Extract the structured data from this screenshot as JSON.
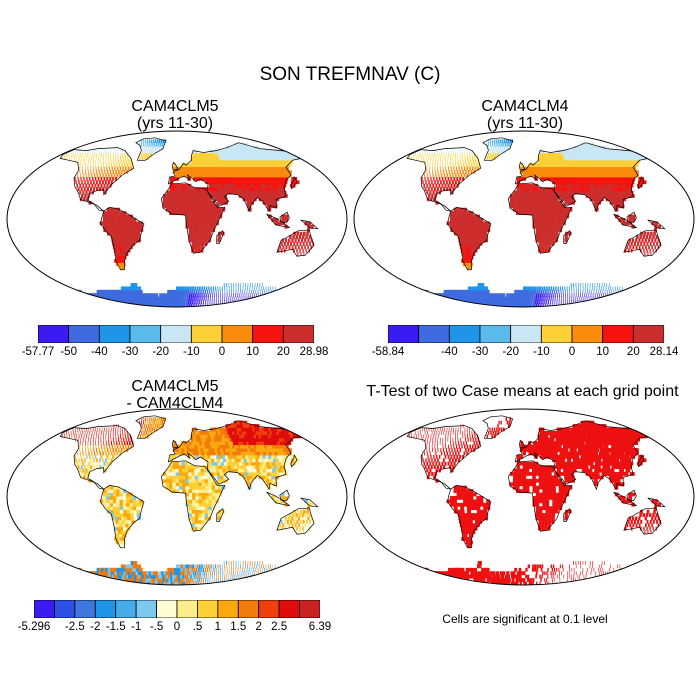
{
  "figure": {
    "title": "SON TREFMNAV (C)"
  },
  "panels": [
    {
      "id": "p1",
      "title_line1": "CAM4CLM5",
      "title_line2": "(yrs 11-30)",
      "field": "absolute"
    },
    {
      "id": "p2",
      "title_line1": "CAM4CLM4",
      "title_line2": "(yrs 11-30)",
      "field": "absolute"
    },
    {
      "id": "p3",
      "title_line1": "CAM4CLM5",
      "title_line2": "- CAM4CLM4",
      "field": "difference"
    },
    {
      "id": "p4",
      "title_line1": "T-Test of two Case means at each grid point",
      "title_line2": "",
      "field": "significance"
    }
  ],
  "colorbars": [
    {
      "id": "cb1",
      "colors": [
        "#3a1cf2",
        "#3f6be0",
        "#1f95ea",
        "#5cb9ec",
        "#c8e6f3",
        "#fcd036",
        "#f98b0d",
        "#f7130f",
        "#cc2d2d"
      ],
      "labels": [
        "-57.77",
        "-50",
        "-40",
        "-30",
        "-20",
        "-10",
        "0",
        "10",
        "20",
        "28.98"
      ]
    },
    {
      "id": "cb2",
      "colors": [
        "#3a1cf2",
        "#3f6be0",
        "#1f95ea",
        "#5cb9ec",
        "#c8e6f3",
        "#fcd036",
        "#f98b0d",
        "#f7130f",
        "#cc2d2d"
      ],
      "labels": [
        "-58.84",
        "",
        "-40",
        "-30",
        "-20",
        "-10",
        "0",
        "10",
        "20",
        "28.14"
      ]
    },
    {
      "id": "cb3",
      "colors": [
        "#3a1cf2",
        "#2f50e6",
        "#3f77df",
        "#1f95ea",
        "#45ace8",
        "#7cc8ef",
        "#fffbd3",
        "#fcec8a",
        "#fcd036",
        "#f9a80e",
        "#f27b0a",
        "#ef3f0c",
        "#e00b0b",
        "#c92222"
      ],
      "labels": [
        "-5.296",
        "",
        "-2.5",
        "-2",
        "-1.5",
        "-1",
        "-.5",
        "0",
        ".5",
        "1",
        "1.5",
        "2",
        "2.5",
        "",
        "6.39"
      ]
    }
  ],
  "significance_note": "Cells are significant at 0.1 level"
}
